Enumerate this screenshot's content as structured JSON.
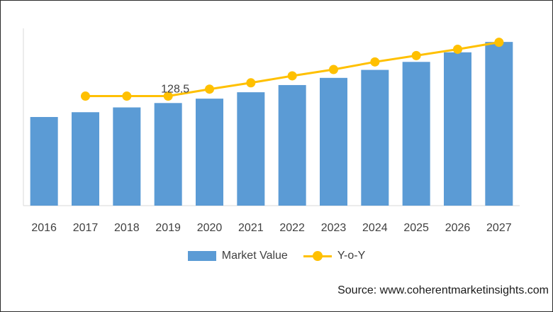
{
  "chart_data": {
    "type": "bar",
    "categories": [
      "2016",
      "2017",
      "2018",
      "2019",
      "2020",
      "2021",
      "2022",
      "2023",
      "2024",
      "2025",
      "2026",
      "2027"
    ],
    "series": [
      {
        "name": "Market Value",
        "type": "bar",
        "color": "#5b9bd5",
        "values": [
          111,
          117,
          123,
          128.5,
          134,
          142,
          151,
          160,
          170,
          180,
          192,
          205
        ]
      },
      {
        "name": "Y-o-Y",
        "type": "line",
        "color": "#ffc000",
        "values": [
          null,
          4.8,
          4.8,
          4.8,
          5.9,
          6.9,
          8.0,
          9.0,
          10.2,
          11.2,
          12.2,
          13.3
        ]
      }
    ],
    "data_labels": [
      {
        "category": "2019",
        "series": "Market Value",
        "text": "128.5"
      }
    ],
    "bar_ylim": [
      0,
      222
    ],
    "line_ylim": [
      -12.5,
      15.5
    ],
    "legend_position": "bottom",
    "grid": false,
    "title": "",
    "xlabel": "",
    "ylabel": ""
  },
  "source_text": "Source: www.coherentmarketinsights.com"
}
